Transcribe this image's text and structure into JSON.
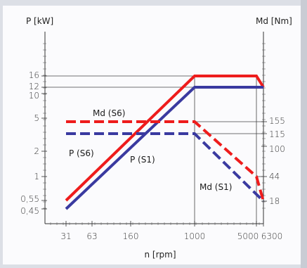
{
  "chart_data": {
    "type": "line",
    "x_axis": {
      "title": "n [rpm]",
      "scale": "log",
      "range": [
        20,
        8000
      ],
      "ticks": [
        {
          "value": 31,
          "label": "31"
        },
        {
          "value": 63,
          "label": "63"
        },
        {
          "value": 160,
          "label": "160"
        },
        {
          "value": 1000,
          "label": "1000"
        },
        {
          "value": 5000,
          "label": "5000"
        },
        {
          "value": 6300,
          "label": "6300"
        }
      ]
    },
    "y_left": {
      "title": "P [kW]",
      "scale": "log",
      "ticks": [
        {
          "value": 0.45,
          "label": "0,45"
        },
        {
          "value": 0.55,
          "label": "0,55"
        },
        {
          "value": 1,
          "label": "1"
        },
        {
          "value": 2,
          "label": "2"
        },
        {
          "value": 5,
          "label": "5"
        },
        {
          "value": 10,
          "label": "10"
        },
        {
          "value": 12,
          "label": "12"
        },
        {
          "value": 16,
          "label": "16"
        }
      ]
    },
    "y_right": {
      "title": "Md [Nm]",
      "scale": "log",
      "ticks": [
        {
          "value": 18,
          "label": "18"
        },
        {
          "value": 44,
          "label": "44"
        },
        {
          "value": 100,
          "label": "100"
        },
        {
          "value": 115,
          "label": "115"
        },
        {
          "value": 155,
          "label": "155"
        }
      ]
    },
    "series": [
      {
        "name": "P (S6)",
        "axis": "left",
        "color": "#ee1c1c",
        "style": "solid",
        "points": [
          [
            31,
            0.55
          ],
          [
            1000,
            16
          ],
          [
            5000,
            16
          ],
          [
            6300,
            12
          ]
        ]
      },
      {
        "name": "P (S1)",
        "axis": "left",
        "color": "#3a3aa0",
        "style": "solid",
        "points": [
          [
            31,
            0.45
          ],
          [
            1000,
            12
          ],
          [
            6300,
            12
          ]
        ]
      },
      {
        "name": "Md (S6)",
        "axis": "right",
        "color": "#ee1c1c",
        "style": "dashed",
        "points": [
          [
            31,
            155
          ],
          [
            1000,
            155
          ],
          [
            5000,
            44
          ],
          [
            6300,
            18
          ]
        ]
      },
      {
        "name": "Md (S1)",
        "axis": "right",
        "color": "#3a3aa0",
        "style": "dashed",
        "points": [
          [
            31,
            115
          ],
          [
            1000,
            115
          ],
          [
            6300,
            18
          ]
        ]
      }
    ],
    "grid": false,
    "annotations": [
      "Md (S6)",
      "P (S6)",
      "P (S1)",
      "Md (S1)"
    ]
  }
}
